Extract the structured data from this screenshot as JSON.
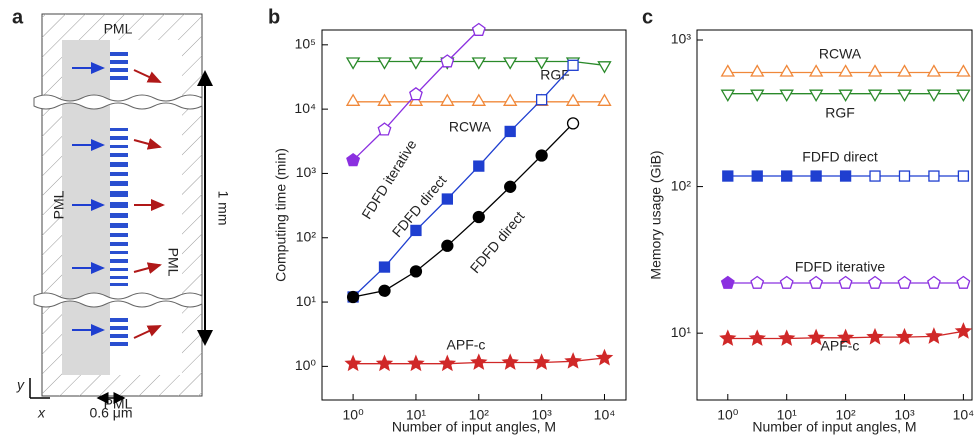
{
  "panel_labels": [
    "a",
    "b",
    "c"
  ],
  "diagram": {
    "pml_top": "PML",
    "pml_left": "PML",
    "pml_right": "PML",
    "pml_bottom": "PML",
    "length": "1 mm",
    "axis_y": "y",
    "axis_x": "x",
    "width": "0.6 μm"
  },
  "chart_data": [
    {
      "type": "line",
      "log_x": true,
      "log_y": true,
      "xlabel": "Number of input angles, M",
      "ylabel": "Computing time (min)",
      "xlim": [
        0.32,
        22000
      ],
      "ylim": [
        0.3,
        170000
      ],
      "xticks": [
        {
          "value": 1,
          "label": "10⁰"
        },
        {
          "value": 10,
          "label": "10¹"
        },
        {
          "value": 100,
          "label": "10²"
        },
        {
          "value": 1000,
          "label": "10³"
        },
        {
          "value": 10000,
          "label": "10⁴"
        }
      ],
      "yticks": [
        {
          "value": 1,
          "label": "10⁰"
        },
        {
          "value": 10,
          "label": "10¹"
        },
        {
          "value": 100,
          "label": "10²"
        },
        {
          "value": 1000,
          "label": "10³"
        },
        {
          "value": 10000,
          "label": "10⁴"
        },
        {
          "value": 100000,
          "label": "10⁵"
        }
      ],
      "series": [
        {
          "name": "RGF",
          "color": "#2a8a2a",
          "marker": "triangle-down",
          "filled_count": 0,
          "x": [
            1,
            3.16,
            10,
            31.6,
            100,
            316,
            1000,
            3162,
            10000
          ],
          "values": [
            55000,
            55000,
            55000,
            55000,
            55000,
            55000,
            55000,
            55000,
            48000
          ]
        },
        {
          "name": "RCWA",
          "color": "#f0883a",
          "marker": "triangle-up",
          "filled_count": 0,
          "x": [
            1,
            3.16,
            10,
            31.6,
            100,
            316,
            1000,
            3162,
            10000
          ],
          "values": [
            13000,
            13000,
            13000,
            13000,
            13000,
            13000,
            13000,
            13000,
            13000
          ]
        },
        {
          "name": "FDFD iterative",
          "color": "#8b30e0",
          "marker": "pentagon",
          "filled_count": 1,
          "x": [
            1,
            3.16,
            10,
            31.6,
            100
          ],
          "values": [
            1600,
            4800,
            17000,
            55000,
            170000
          ]
        },
        {
          "name": "FDFD direct",
          "color": "#1f3fd0",
          "marker": "square",
          "filled_count": 6,
          "x": [
            1,
            3.16,
            10,
            31.6,
            100,
            316,
            1000,
            3162
          ],
          "values": [
            12,
            35,
            130,
            400,
            1300,
            4500,
            14000,
            48000
          ]
        },
        {
          "name": "FDFD direct",
          "color": "#000000",
          "marker": "circle",
          "filled_count": 7,
          "x": [
            1,
            3.16,
            10,
            31.6,
            100,
            316,
            1000,
            3162
          ],
          "values": [
            12,
            15,
            30,
            75,
            210,
            620,
            1900,
            6000
          ]
        },
        {
          "name": "APF-c",
          "color": "#d02828",
          "marker": "star",
          "filled_count": 9,
          "x": [
            1,
            3.16,
            10,
            31.6,
            100,
            316,
            1000,
            3162,
            10000
          ],
          "values": [
            1.1,
            1.1,
            1.1,
            1.1,
            1.15,
            1.15,
            1.15,
            1.2,
            1.35
          ]
        }
      ]
    },
    {
      "type": "line",
      "log_x": true,
      "log_y": true,
      "xlabel": "Number of input angles, M",
      "ylabel": "Memory usage (GiB)",
      "xlim": [
        0.3,
        14000
      ],
      "ylim": [
        3.5,
        1170
      ],
      "xticks": [
        {
          "value": 1,
          "label": "10⁰"
        },
        {
          "value": 10,
          "label": "10¹"
        },
        {
          "value": 100,
          "label": "10²"
        },
        {
          "value": 1000,
          "label": "10³"
        },
        {
          "value": 10000,
          "label": "10⁴"
        }
      ],
      "yticks": [
        {
          "value": 10,
          "label": "10¹"
        },
        {
          "value": 100,
          "label": "10²"
        },
        {
          "value": 1000,
          "label": "10³"
        }
      ],
      "series": [
        {
          "name": "RCWA",
          "color": "#f0883a",
          "marker": "triangle-up",
          "filled_count": 0,
          "x": [
            1,
            3.16,
            10,
            31.6,
            100,
            316,
            1000,
            3162,
            10000
          ],
          "values": [
            600,
            600,
            600,
            600,
            600,
            600,
            600,
            600,
            600
          ]
        },
        {
          "name": "RGF",
          "color": "#2a8a2a",
          "marker": "triangle-down",
          "filled_count": 0,
          "x": [
            1,
            3.16,
            10,
            31.6,
            100,
            316,
            1000,
            3162,
            10000
          ],
          "values": [
            430,
            430,
            430,
            430,
            430,
            430,
            430,
            430,
            430
          ]
        },
        {
          "name": "FDFD direct",
          "color": "#1f3fd0",
          "marker": "square",
          "filled_count": 5,
          "x": [
            1,
            3.16,
            10,
            31.6,
            100,
            316,
            1000,
            3162,
            10000
          ],
          "values": [
            118,
            118,
            118,
            118,
            118,
            118,
            118,
            118,
            118
          ]
        },
        {
          "name": "FDFD iterative",
          "color": "#8b30e0",
          "marker": "pentagon",
          "filled_count": 1,
          "x": [
            1,
            3.16,
            10,
            31.6,
            100,
            316,
            1000,
            3162,
            10000
          ],
          "values": [
            22,
            22,
            22,
            22,
            22,
            22,
            22,
            22,
            22
          ]
        },
        {
          "name": "APF-c",
          "color": "#d02828",
          "marker": "star",
          "filled_count": 9,
          "x": [
            1,
            3.16,
            10,
            31.6,
            100,
            316,
            1000,
            3162,
            10000
          ],
          "values": [
            9.2,
            9.2,
            9.2,
            9.3,
            9.3,
            9.4,
            9.4,
            9.5,
            10.3
          ]
        }
      ]
    }
  ]
}
